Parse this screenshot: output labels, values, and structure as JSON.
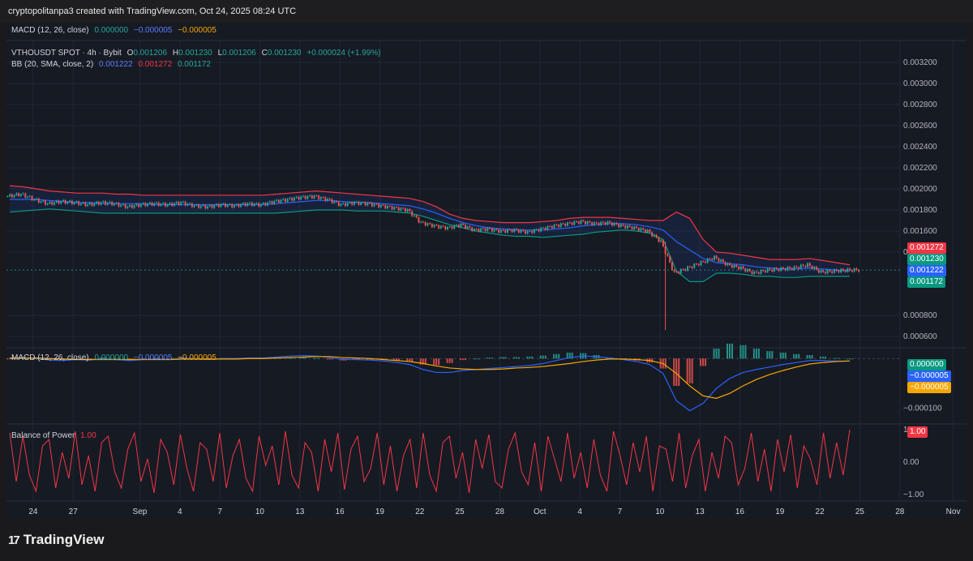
{
  "attribution": "cryptopolitanpa3 created with TradingView.com, Oct 24, 2025 08:24 UTC",
  "brand": "TradingView",
  "brand_mark": "17",
  "top_legend": {
    "name": "MACD (12, 26, close)",
    "v1": "0.000000",
    "v2": "−0.000005",
    "v3": "−0.000005"
  },
  "price_legend": {
    "symbol": "VTHOUSDT SPOT · 4h · Bybit",
    "o_label": "O",
    "o": "0.001206",
    "h_label": "H",
    "h": "0.001230",
    "l_label": "L",
    "l": "0.001206",
    "c_label": "C",
    "c": "0.001230",
    "change": "+0.000024 (+1.99%)"
  },
  "bb_legend": {
    "name": "BB (20, SMA, close, 2)",
    "basis": "0.001222",
    "upper": "0.001272",
    "lower": "0.001172"
  },
  "macd_legend": {
    "name": "MACD (12, 26, close)",
    "hist": "0.000000",
    "macd": "−0.000005",
    "signal": "−0.000005"
  },
  "bop_legend": {
    "name": "Balance of Power",
    "value": "1.00"
  },
  "price_tags": [
    {
      "text": "0.001272",
      "color": "#f23645",
      "value": 0.001272
    },
    {
      "text": "0.001230",
      "color": "#089981",
      "value": 0.00123
    },
    {
      "text": "0.001222",
      "color": "#2962ff",
      "value": 0.001222
    },
    {
      "text": "0.001172",
      "color": "#089981",
      "value": 0.001172
    }
  ],
  "macd_tags": [
    {
      "text": "0.000000",
      "color": "#089981"
    },
    {
      "text": "−0.000005",
      "color": "#2962ff"
    },
    {
      "text": "−0.000005",
      "color": "#f7a600"
    }
  ],
  "bop_tag": {
    "text": "1.00",
    "color": "#f23645"
  },
  "colors": {
    "up": "#26a69a",
    "down": "#ef5350",
    "bb_upper": "#f23645",
    "bb_basis": "#2962ff",
    "bb_lower": "#089981",
    "macd": "#2962ff",
    "signal": "#f7a600",
    "bop": "#f23645"
  },
  "chart_data": [
    {
      "type": "candlestick",
      "title": "VTHOUSDT SPOT · 4h · Bybit",
      "ylim": [
        0.0005,
        0.0033
      ],
      "y_ticks": [
        "0.003200",
        "0.003000",
        "0.002800",
        "0.002600",
        "0.002400",
        "0.002200",
        "0.002000",
        "0.001800",
        "0.001600",
        "0.001400",
        "0.000800",
        "0.000600"
      ],
      "y_tick_values": [
        0.0032,
        0.003,
        0.0028,
        0.0026,
        0.0024,
        0.0022,
        0.002,
        0.0018,
        0.0016,
        0.0014,
        0.0008,
        0.0006
      ],
      "x_ticks": [
        "24",
        "27",
        "Sep",
        "4",
        "7",
        "10",
        "13",
        "16",
        "19",
        "22",
        "25",
        "28",
        "Oct",
        "4",
        "7",
        "10",
        "13",
        "16",
        "19",
        "22",
        "25",
        "28",
        "Nov"
      ],
      "x_range": [
        "2025-08-22",
        "2025-11-02"
      ],
      "x_tick_dates": [
        "2025-08-24",
        "2025-08-27",
        "2025-09-01",
        "2025-09-04",
        "2025-09-07",
        "2025-09-10",
        "2025-09-13",
        "2025-09-16",
        "2025-09-19",
        "2025-09-22",
        "2025-09-25",
        "2025-09-28",
        "2025-10-01",
        "2025-10-04",
        "2025-10-07",
        "2025-10-10",
        "2025-10-13",
        "2025-10-16",
        "2025-10-19",
        "2025-10-22",
        "2025-10-25",
        "2025-10-28",
        "2025-11-01"
      ],
      "close_series": {
        "x": [
          "2025-08-22",
          "2025-08-23",
          "2025-08-24",
          "2025-08-25",
          "2025-08-26",
          "2025-08-27",
          "2025-08-28",
          "2025-08-29",
          "2025-08-30",
          "2025-08-31",
          "2025-09-01",
          "2025-09-02",
          "2025-09-03",
          "2025-09-04",
          "2025-09-05",
          "2025-09-06",
          "2025-09-07",
          "2025-09-08",
          "2025-09-09",
          "2025-09-10",
          "2025-09-11",
          "2025-09-12",
          "2025-09-13",
          "2025-09-14",
          "2025-09-15",
          "2025-09-16",
          "2025-09-17",
          "2025-09-18",
          "2025-09-19",
          "2025-09-20",
          "2025-09-21",
          "2025-09-22",
          "2025-09-23",
          "2025-09-24",
          "2025-09-25",
          "2025-09-26",
          "2025-09-27",
          "2025-09-28",
          "2025-09-29",
          "2025-09-30",
          "2025-10-01",
          "2025-10-02",
          "2025-10-03",
          "2025-10-04",
          "2025-10-05",
          "2025-10-06",
          "2025-10-07",
          "2025-10-08",
          "2025-10-09",
          "2025-10-10",
          "2025-10-11",
          "2025-10-12",
          "2025-10-13",
          "2025-10-14",
          "2025-10-15",
          "2025-10-16",
          "2025-10-17",
          "2025-10-18",
          "2025-10-19",
          "2025-10-20",
          "2025-10-21",
          "2025-10-22",
          "2025-10-23",
          "2025-10-24"
        ],
        "y": [
          0.00193,
          0.00195,
          0.0019,
          0.00186,
          0.00188,
          0.00187,
          0.00185,
          0.00187,
          0.00186,
          0.00183,
          0.00185,
          0.00186,
          0.00185,
          0.00187,
          0.00184,
          0.00183,
          0.00185,
          0.00184,
          0.00186,
          0.00185,
          0.00188,
          0.0019,
          0.00192,
          0.00193,
          0.0019,
          0.00185,
          0.00187,
          0.00186,
          0.00184,
          0.00182,
          0.0018,
          0.00168,
          0.00165,
          0.00163,
          0.00166,
          0.00161,
          0.00162,
          0.0016,
          0.00161,
          0.00159,
          0.00162,
          0.00165,
          0.00167,
          0.00169,
          0.00167,
          0.00168,
          0.00165,
          0.00163,
          0.0016,
          0.0015,
          0.0012,
          0.00125,
          0.0013,
          0.00135,
          0.00128,
          0.00125,
          0.0012,
          0.00123,
          0.00124,
          0.00125,
          0.00128,
          0.00121,
          0.00122,
          0.00123
        ]
      },
      "bb_upper": [
        0.00203,
        0.00202,
        0.002,
        0.00198,
        0.00197,
        0.00196,
        0.00196,
        0.00196,
        0.00195,
        0.00195,
        0.00194,
        0.00194,
        0.00194,
        0.00194,
        0.00194,
        0.00194,
        0.00194,
        0.00194,
        0.00194,
        0.00194,
        0.00195,
        0.00196,
        0.00197,
        0.00198,
        0.00197,
        0.00196,
        0.00195,
        0.00194,
        0.00193,
        0.00192,
        0.00191,
        0.00188,
        0.00183,
        0.00176,
        0.00172,
        0.0017,
        0.00169,
        0.00168,
        0.00168,
        0.00168,
        0.00169,
        0.0017,
        0.00172,
        0.00173,
        0.00173,
        0.00173,
        0.00172,
        0.00171,
        0.0017,
        0.0017,
        0.00178,
        0.00172,
        0.00152,
        0.0014,
        0.00139,
        0.00137,
        0.00135,
        0.00133,
        0.00133,
        0.00133,
        0.00134,
        0.00132,
        0.0013,
        0.00128
      ],
      "bb_basis": [
        0.0019,
        0.0019,
        0.0019,
        0.00189,
        0.00188,
        0.00187,
        0.00187,
        0.00186,
        0.00186,
        0.00186,
        0.00186,
        0.00185,
        0.00185,
        0.00185,
        0.00185,
        0.00185,
        0.00185,
        0.00185,
        0.00185,
        0.00185,
        0.00186,
        0.00187,
        0.00188,
        0.00189,
        0.00189,
        0.00188,
        0.00187,
        0.00187,
        0.00186,
        0.00185,
        0.00184,
        0.00181,
        0.00177,
        0.00172,
        0.00168,
        0.00165,
        0.00163,
        0.00162,
        0.00161,
        0.00161,
        0.00161,
        0.00162,
        0.00163,
        0.00165,
        0.00166,
        0.00167,
        0.00167,
        0.00166,
        0.00164,
        0.00161,
        0.0015,
        0.00142,
        0.00134,
        0.0013,
        0.00129,
        0.00128,
        0.00126,
        0.00125,
        0.00124,
        0.00124,
        0.00125,
        0.00124,
        0.00123,
        0.00122
      ],
      "bb_lower": [
        0.00178,
        0.00179,
        0.0018,
        0.00181,
        0.0018,
        0.00179,
        0.00178,
        0.00177,
        0.00177,
        0.00177,
        0.00177,
        0.00177,
        0.00177,
        0.00177,
        0.00177,
        0.00177,
        0.00177,
        0.00177,
        0.00177,
        0.00177,
        0.00177,
        0.00178,
        0.00179,
        0.0018,
        0.0018,
        0.0018,
        0.00179,
        0.00179,
        0.00179,
        0.00178,
        0.00177,
        0.00174,
        0.0017,
        0.00166,
        0.00163,
        0.0016,
        0.00158,
        0.00156,
        0.00155,
        0.00155,
        0.00154,
        0.00155,
        0.00156,
        0.00157,
        0.00159,
        0.0016,
        0.00161,
        0.0016,
        0.00158,
        0.00152,
        0.00122,
        0.00112,
        0.00112,
        0.0012,
        0.0012,
        0.00119,
        0.00117,
        0.00117,
        0.00116,
        0.00116,
        0.00117,
        0.00117,
        0.00117,
        0.00117
      ],
      "spike_low": {
        "date": "2025-10-10",
        "value": 0.00066
      }
    },
    {
      "type": "line",
      "title": "MACD (12, 26, close)",
      "ylim": [
        -0.00013,
        2e-05
      ],
      "y_ticks": [
        "−0.000100"
      ],
      "y_tick_values": [
        -0.0001
      ],
      "macd": [
        0,
        2e-06,
        0,
        -3e-06,
        -4e-06,
        -2e-06,
        -3e-06,
        0,
        -2e-06,
        -4e-06,
        -2e-06,
        -1e-06,
        -2e-06,
        1e-06,
        -1e-06,
        -2e-06,
        0,
        0,
        1e-06,
        1e-06,
        3e-06,
        5e-06,
        6e-06,
        5e-06,
        2e-06,
        -2e-06,
        -2e-06,
        -3e-06,
        -5e-06,
        -8e-06,
        -1.2e-05,
        -2.2e-05,
        -2.8e-05,
        -2.8e-05,
        -2.4e-05,
        -2.2e-05,
        -2e-05,
        -1.8e-05,
        -1.6e-05,
        -1.4e-05,
        -1e-05,
        -4e-06,
        2e-06,
        5e-06,
        4e-06,
        1e-06,
        -2e-06,
        -6e-06,
        -1.2e-05,
        -3e-05,
        -8.5e-05,
        -0.000105,
        -9e-05,
        -6e-05,
        -4e-05,
        -2.8e-05,
        -2.2e-05,
        -1.7e-05,
        -1.2e-05,
        -8e-06,
        -4e-06,
        -4e-06,
        -5e-06,
        -5e-06
      ],
      "signal": [
        1e-06,
        1e-06,
        1e-06,
        0,
        -1e-06,
        -2e-06,
        -2e-06,
        -2e-06,
        -2e-06,
        -2e-06,
        -2e-06,
        -2e-06,
        -2e-06,
        -1e-06,
        -1e-06,
        -1e-06,
        -1e-06,
        -1e-06,
        0,
        0,
        1e-06,
        2e-06,
        3e-06,
        4e-06,
        4e-06,
        2e-06,
        1e-06,
        0,
        -2e-06,
        -4e-06,
        -6e-06,
        -1e-05,
        -1.5e-05,
        -1.9e-05,
        -2.1e-05,
        -2.2e-05,
        -2.2e-05,
        -2.1e-05,
        -1.9e-05,
        -1.8e-05,
        -1.6e-05,
        -1.3e-05,
        -1e-05,
        -6e-06,
        -3e-06,
        -1e-06,
        -1e-06,
        -2e-06,
        -4e-06,
        -1e-05,
        -3e-05,
        -5.5e-05,
        -7.5e-05,
        -8e-05,
        -7e-05,
        -5.5e-05,
        -4.2e-05,
        -3.2e-05,
        -2.4e-05,
        -1.7e-05,
        -1.1e-05,
        -8e-06,
        -6e-06,
        -5e-06
      ]
    },
    {
      "type": "line",
      "title": "Balance of Power",
      "ylim": [
        -1.15,
        1.15
      ],
      "y_ticks": [
        "1.00",
        "0.00",
        "−1.00"
      ],
      "y_tick_values": [
        1,
        0,
        -1
      ],
      "values": [
        0.9,
        -0.6,
        0.8,
        -0.4,
        -0.9,
        0.5,
        0.7,
        -0.8,
        0.3,
        -0.5,
        0.95,
        -0.7,
        0.2,
        -0.9,
        0.6,
        0.8,
        -0.3,
        -0.8,
        0.4,
        0.9,
        -0.6,
        0.1,
        -0.95,
        0.7,
        0.3,
        -0.7,
        0.85,
        -0.2,
        -0.9,
        0.6,
        0.4,
        -0.6,
        0.9,
        -0.8,
        0.2,
        0.7,
        -0.5,
        -0.9,
        0.8,
        -0.1,
        0.5,
        -0.7,
        0.95,
        -0.4,
        -0.8,
        0.6,
        0.3,
        -0.9,
        0.7,
        -0.3,
        0.9,
        -0.85,
        0.4,
        0.8,
        -0.6,
        -0.2,
        0.9,
        -0.7,
        0.5,
        -0.9,
        0.2,
        0.7,
        -0.8,
        0.9,
        -0.4,
        -0.9,
        0.6,
        0.8,
        -0.5,
        0.3,
        -0.95,
        0.7,
        -0.2,
        0.85,
        -0.6,
        -0.8,
        0.4,
        0.9,
        -0.3,
        -0.7,
        0.6,
        -0.9,
        0.8,
        0.1,
        -0.6,
        0.9,
        -0.5,
        0.3,
        -0.8,
        0.7,
        -0.4,
        -0.9,
        0.95,
        0.2,
        -0.7,
        0.6,
        -0.3,
        0.8,
        -0.9,
        0.5,
        0.4,
        -0.6,
        0.9,
        -0.8,
        0.2,
        0.7,
        -0.9,
        0.3,
        -0.5,
        0.8,
        0.6,
        -0.7,
        -0.2,
        0.9,
        -0.6,
        0.4,
        -0.9,
        0.7,
        -0.3,
        0.85,
        -0.8,
        0.5,
        0.1,
        -0.7,
        0.9,
        -0.5,
        0.6,
        -0.4,
        1.0
      ]
    }
  ]
}
